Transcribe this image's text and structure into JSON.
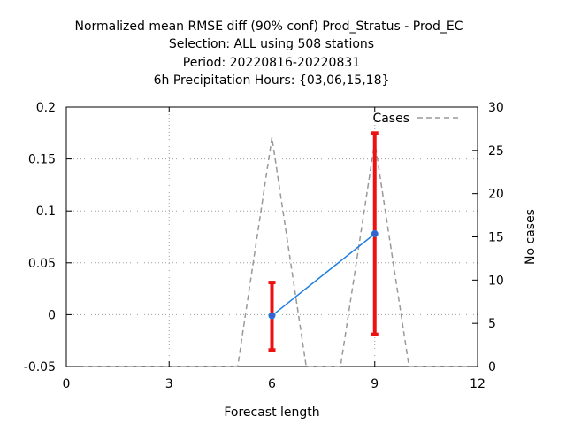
{
  "chart_data": {
    "type": "line",
    "title_lines": [
      "Normalized mean RMSE diff (90% conf) Prod_Stratus - Prod_EC",
      "Selection: ALL using   508 stations",
      "Period: 20220816-20220831",
      "6h Precipitation   Hours: {03,06,15,18}"
    ],
    "xlabel": "Forecast length",
    "ylabel": "",
    "y2label": "No cases",
    "xlim": [
      0,
      12
    ],
    "ylim": [
      -0.05,
      0.2
    ],
    "y2lim": [
      0,
      30
    ],
    "xticks": [
      "0",
      "3",
      "6",
      "9",
      "12"
    ],
    "yticks": [
      "-0.05",
      "0",
      "0.05",
      "0.1",
      "0.15",
      "0.2"
    ],
    "y2ticks": [
      "0",
      "5",
      "10",
      "15",
      "20",
      "25",
      "30"
    ],
    "grid": true,
    "legend_position": "top-right",
    "series": [
      {
        "name": "",
        "axis": "left",
        "color": "#1f7fe0",
        "marker_color": "#3a5fcd",
        "x": [
          6,
          9
        ],
        "y": [
          -0.001,
          0.078
        ],
        "err_low": [
          -0.034,
          -0.019
        ],
        "err_high": [
          0.031,
          0.175
        ],
        "errorbar_color": "#ee1111"
      },
      {
        "name": "Cases",
        "axis": "right",
        "style": "dashed",
        "color": "#999999",
        "x": [
          0.5,
          1,
          2,
          3,
          4,
          5,
          6,
          7,
          8,
          9,
          10,
          11,
          11.8
        ],
        "y": [
          0,
          0,
          0,
          0,
          0,
          0,
          26.5,
          0,
          0,
          26,
          0,
          0,
          0
        ]
      }
    ]
  }
}
